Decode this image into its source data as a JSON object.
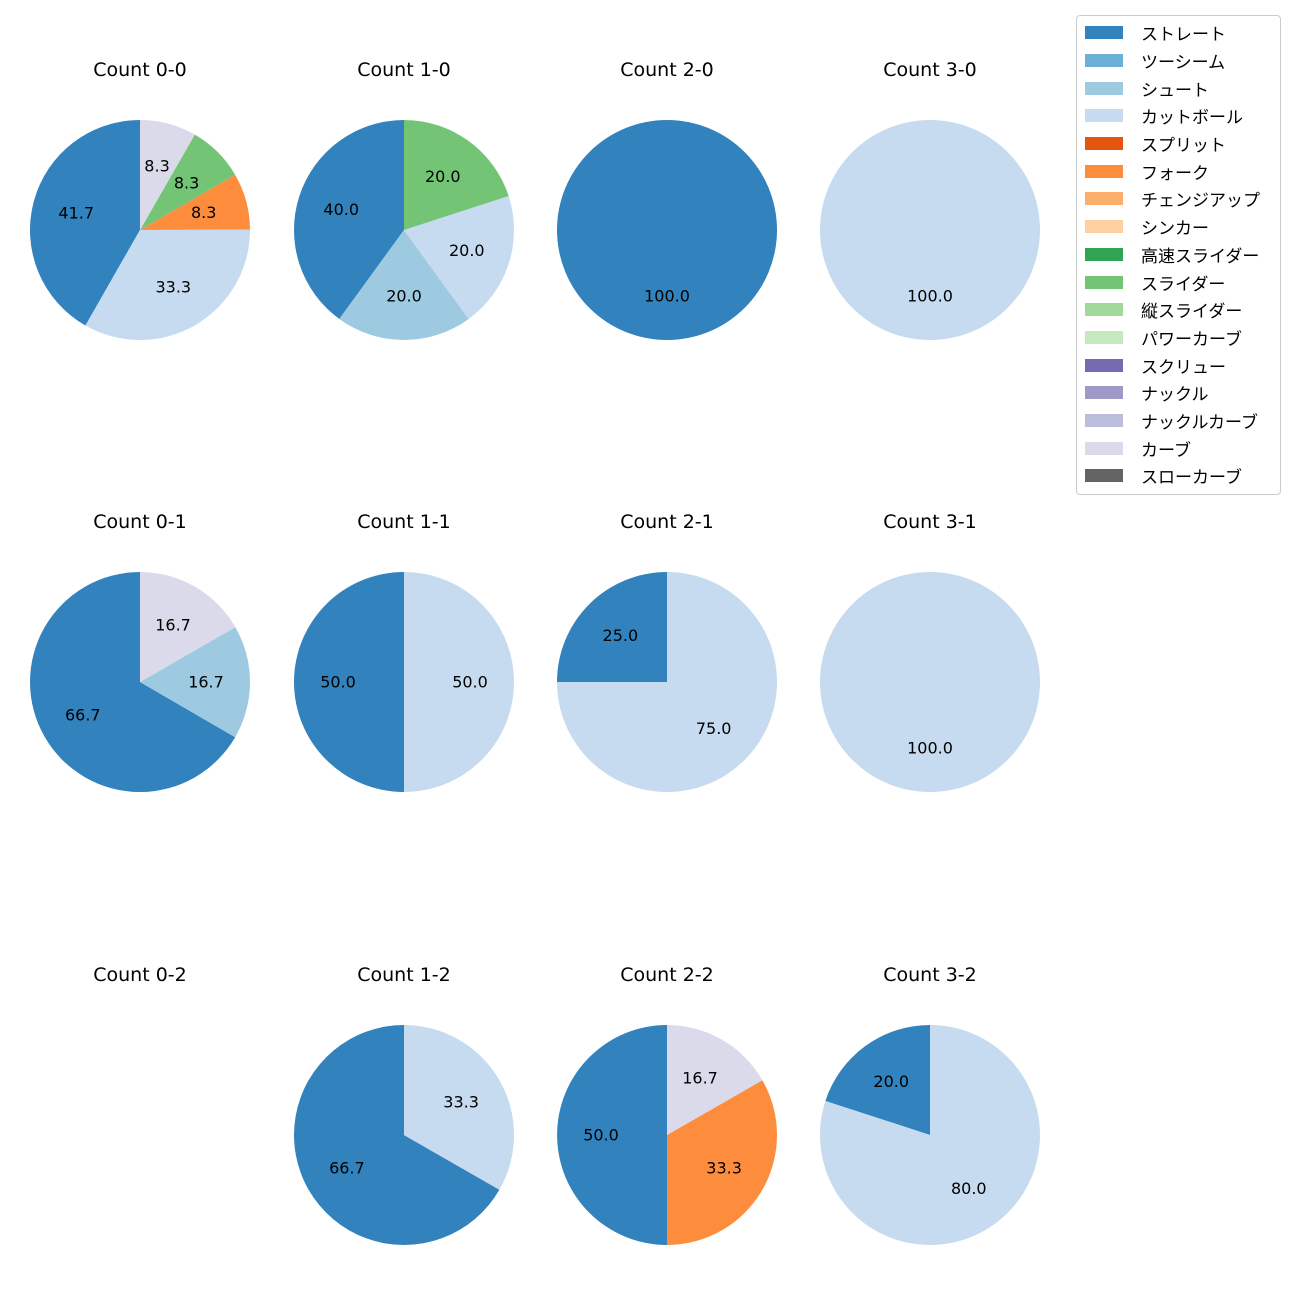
{
  "chart_data": {
    "type": "pie",
    "pitch_types": [
      "ストレート",
      "ツーシーム",
      "シュート",
      "カットボール",
      "スプリット",
      "フォーク",
      "チェンジアップ",
      "シンカー",
      "高速スライダー",
      "スライダー",
      "縦スライダー",
      "パワーカーブ",
      "スクリュー",
      "ナックル",
      "ナックルカーブ",
      "カーブ",
      "スローカーブ"
    ],
    "colors": {
      "ストレート": "#3182bd",
      "ツーシーム": "#6baed6",
      "シュート": "#9ecae1",
      "カットボール": "#c6dbef",
      "スプリット": "#e6550d",
      "フォーク": "#fd8d3c",
      "チェンジアップ": "#fdae6b",
      "シンカー": "#fdd0a2",
      "高速スライダー": "#31a354",
      "スライダー": "#74c476",
      "縦スライダー": "#a1d99b",
      "パワーカーブ": "#c7e9c0",
      "スクリュー": "#756bb1",
      "ナックル": "#9e9ac8",
      "ナックルカーブ": "#bcbddc",
      "カーブ": "#dadaeb",
      "スローカーブ": "#636363"
    },
    "legend_position": "top-right",
    "charts": [
      {
        "title": "Count 0-0",
        "slices": [
          {
            "label": "ストレート",
            "value": 41.7
          },
          {
            "label": "カットボール",
            "value": 33.3
          },
          {
            "label": "フォーク",
            "value": 8.3
          },
          {
            "label": "スライダー",
            "value": 8.3
          },
          {
            "label": "カーブ",
            "value": 8.3
          }
        ]
      },
      {
        "title": "Count 1-0",
        "slices": [
          {
            "label": "ストレート",
            "value": 40.0
          },
          {
            "label": "シュート",
            "value": 20.0
          },
          {
            "label": "カットボール",
            "value": 20.0
          },
          {
            "label": "スライダー",
            "value": 20.0
          }
        ]
      },
      {
        "title": "Count 2-0",
        "slices": [
          {
            "label": "ストレート",
            "value": 100.0
          }
        ]
      },
      {
        "title": "Count 3-0",
        "slices": [
          {
            "label": "カットボール",
            "value": 100.0
          }
        ]
      },
      {
        "title": "Count 0-1",
        "slices": [
          {
            "label": "ストレート",
            "value": 66.7
          },
          {
            "label": "シュート",
            "value": 16.7
          },
          {
            "label": "カーブ",
            "value": 16.7
          }
        ]
      },
      {
        "title": "Count 1-1",
        "slices": [
          {
            "label": "ストレート",
            "value": 50.0
          },
          {
            "label": "カットボール",
            "value": 50.0
          }
        ]
      },
      {
        "title": "Count 2-1",
        "slices": [
          {
            "label": "ストレート",
            "value": 25.0
          },
          {
            "label": "カットボール",
            "value": 75.0
          }
        ]
      },
      {
        "title": "Count 3-1",
        "slices": [
          {
            "label": "カットボール",
            "value": 100.0
          }
        ]
      },
      {
        "title": "Count 0-2",
        "slices": []
      },
      {
        "title": "Count 1-2",
        "slices": [
          {
            "label": "ストレート",
            "value": 66.7
          },
          {
            "label": "カットボール",
            "value": 33.3
          }
        ]
      },
      {
        "title": "Count 2-2",
        "slices": [
          {
            "label": "ストレート",
            "value": 50.0
          },
          {
            "label": "フォーク",
            "value": 33.3
          },
          {
            "label": "カーブ",
            "value": 16.7
          }
        ]
      },
      {
        "title": "Count 3-2",
        "slices": [
          {
            "label": "ストレート",
            "value": 20.0
          },
          {
            "label": "カットボール",
            "value": 80.0
          }
        ]
      }
    ]
  }
}
